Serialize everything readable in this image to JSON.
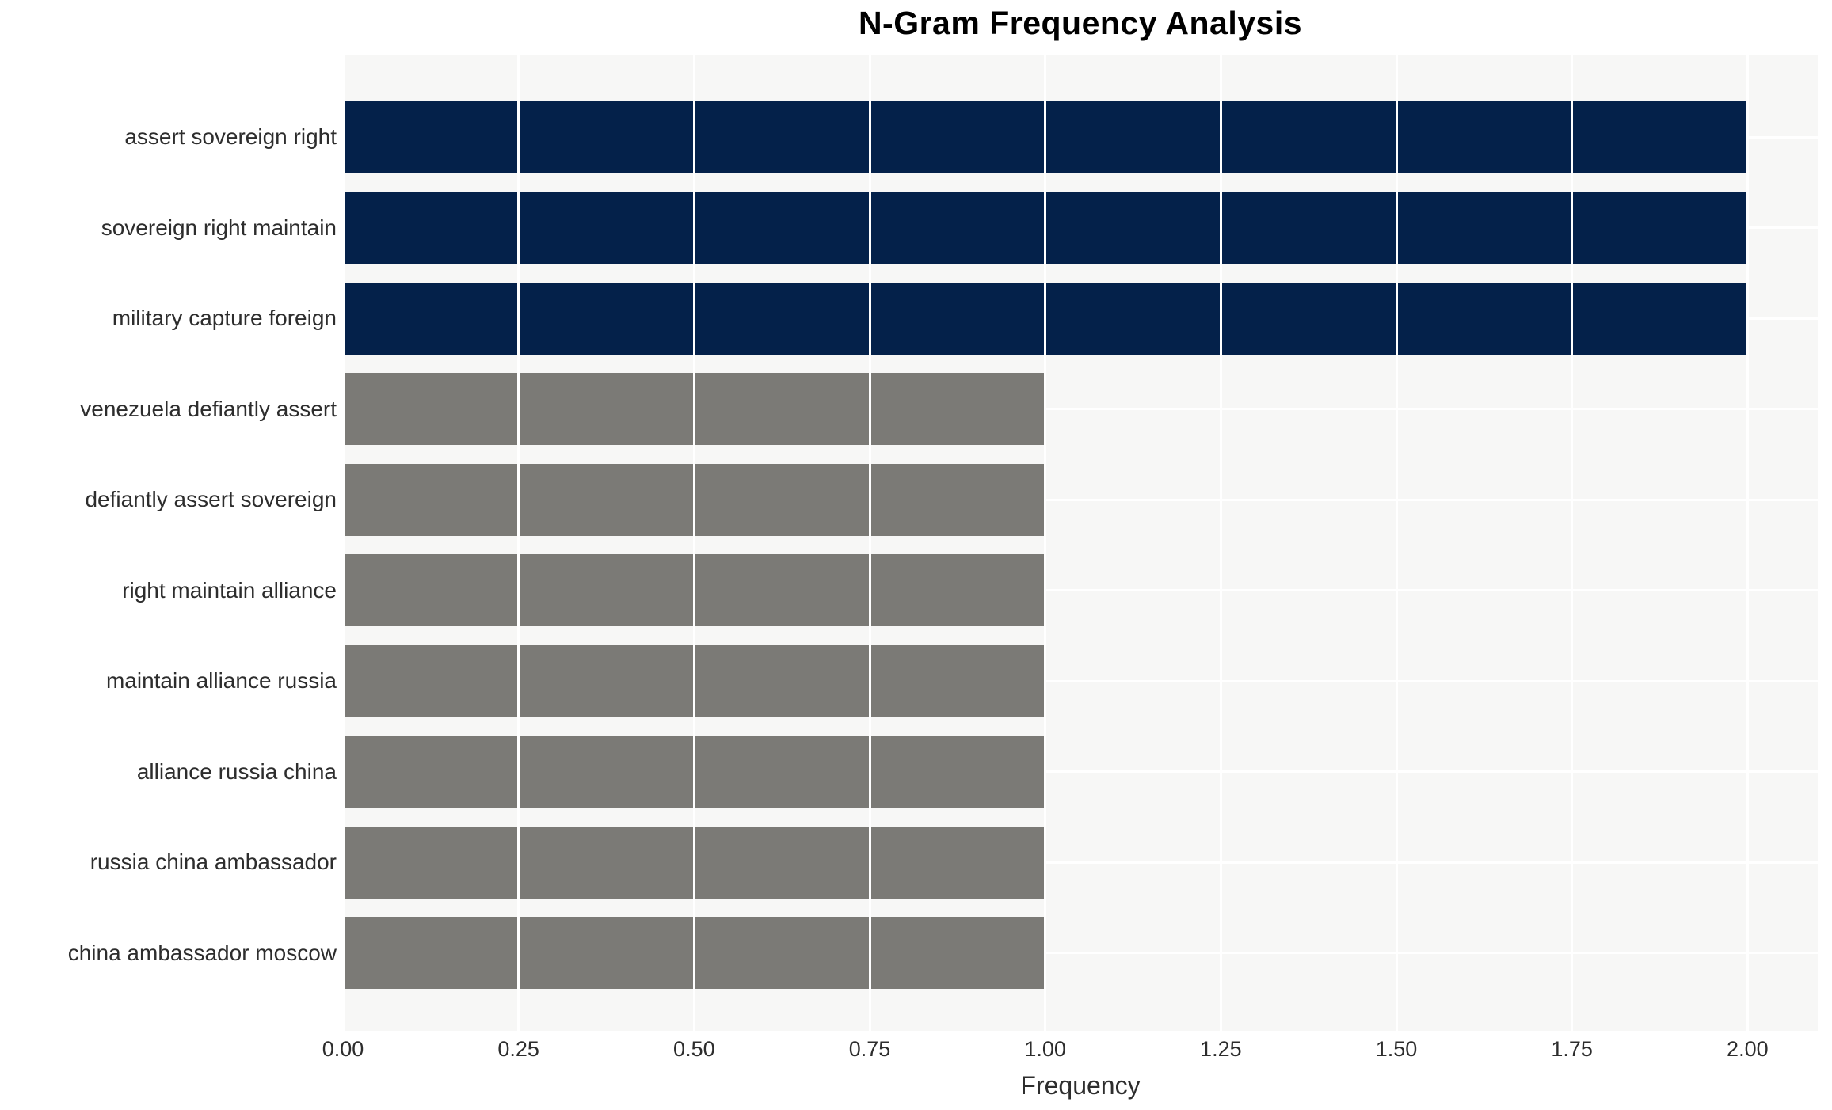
{
  "chart_data": {
    "type": "bar",
    "orientation": "horizontal",
    "title": "N-Gram Frequency Analysis",
    "xlabel": "Frequency",
    "ylabel": "",
    "categories": [
      "assert sovereign right",
      "sovereign right maintain",
      "military capture foreign",
      "venezuela defiantly assert",
      "defiantly assert sovereign",
      "right maintain alliance",
      "maintain alliance russia",
      "alliance russia china",
      "russia china ambassador",
      "china ambassador moscow"
    ],
    "values": [
      2,
      2,
      2,
      1,
      1,
      1,
      1,
      1,
      1,
      1
    ],
    "bar_colors": [
      "#04214a",
      "#04214a",
      "#04214a",
      "#7b7a76",
      "#7b7a76",
      "#7b7a76",
      "#7b7a76",
      "#7b7a76",
      "#7b7a76",
      "#7b7a76"
    ],
    "xticks": [
      {
        "value": 0,
        "label": "0.00"
      },
      {
        "value": 0.25,
        "label": "0.25"
      },
      {
        "value": 0.5,
        "label": "0.50"
      },
      {
        "value": 0.75,
        "label": "0.75"
      },
      {
        "value": 1,
        "label": "1.00"
      },
      {
        "value": 1.25,
        "label": "1.25"
      },
      {
        "value": 1.5,
        "label": "1.50"
      },
      {
        "value": 1.75,
        "label": "1.75"
      },
      {
        "value": 2,
        "label": "2.00"
      }
    ],
    "xlim": [
      0,
      2.1
    ],
    "legend": null,
    "grid": {
      "show": true,
      "color": "#ffffff",
      "panel_bg": "#f7f7f6"
    },
    "colors": {
      "highlight": "#04214a",
      "default": "#7b7a76",
      "text": "#2d2d2d",
      "title": "#000000",
      "page_bg": "#ffffff"
    }
  }
}
